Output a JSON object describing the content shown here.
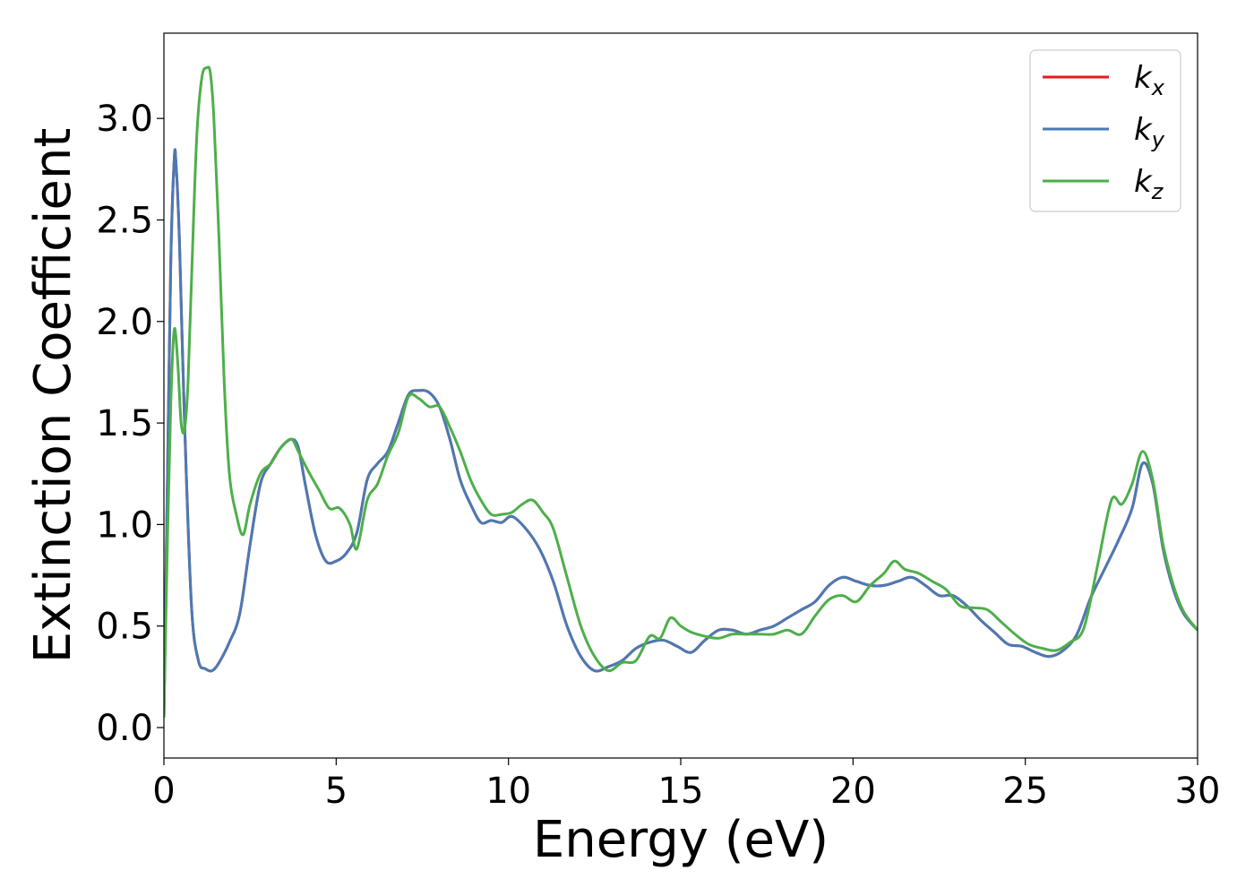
{
  "chart_data": {
    "type": "line",
    "xlabel": "Energy (eV)",
    "ylabel": "Extinction Coefficient",
    "xlim": [
      0,
      30
    ],
    "ylim": [
      -0.15,
      3.42
    ],
    "xticks": [
      0,
      5,
      10,
      15,
      20,
      25,
      30
    ],
    "xtick_labels": [
      "0",
      "5",
      "10",
      "15",
      "20",
      "25",
      "30"
    ],
    "yticks": [
      0.0,
      0.5,
      1.0,
      1.5,
      2.0,
      2.5,
      3.0
    ],
    "ytick_labels": [
      "0.0",
      "0.5",
      "1.0",
      "1.5",
      "2.0",
      "2.5",
      "3.0"
    ],
    "grid": false,
    "legend_position": "top-right",
    "series": [
      {
        "name": "kx",
        "name_main": "k",
        "name_sub": "x",
        "color": "#e41a1c",
        "x": [
          0,
          0.1,
          0.2,
          0.3,
          0.35,
          0.45,
          0.6,
          0.8,
          1.0,
          1.2,
          1.4,
          1.6,
          1.9,
          2.2,
          2.5,
          2.8,
          3.1,
          3.4,
          3.7,
          3.9,
          4.1,
          4.4,
          4.7,
          5.0,
          5.3,
          5.6,
          5.9,
          6.2,
          6.5,
          6.8,
          7.1,
          7.4,
          7.7,
          8.0,
          8.3,
          8.6,
          8.9,
          9.2,
          9.5,
          9.8,
          10.1,
          10.5,
          10.9,
          11.3,
          11.7,
          12.1,
          12.5,
          12.9,
          13.3,
          13.7,
          14.1,
          14.5,
          14.9,
          15.3,
          15.7,
          16.1,
          16.5,
          16.9,
          17.3,
          17.7,
          18.1,
          18.5,
          18.9,
          19.3,
          19.7,
          20.1,
          20.5,
          20.9,
          21.3,
          21.7,
          22.1,
          22.5,
          22.9,
          23.3,
          23.7,
          24.1,
          24.5,
          24.9,
          25.3,
          25.7,
          26.1,
          26.5,
          26.9,
          27.3,
          27.7,
          28.1,
          28.4,
          28.7,
          29.0,
          29.3,
          29.6,
          30.0
        ],
        "values": [
          0.05,
          1.2,
          2.3,
          2.8,
          2.78,
          2.4,
          1.5,
          0.6,
          0.33,
          0.29,
          0.28,
          0.32,
          0.42,
          0.56,
          0.9,
          1.2,
          1.3,
          1.38,
          1.42,
          1.38,
          1.2,
          0.95,
          0.82,
          0.82,
          0.86,
          0.96,
          1.22,
          1.3,
          1.36,
          1.5,
          1.64,
          1.66,
          1.65,
          1.58,
          1.42,
          1.22,
          1.1,
          1.01,
          1.02,
          1.01,
          1.04,
          0.98,
          0.88,
          0.72,
          0.5,
          0.35,
          0.28,
          0.3,
          0.33,
          0.39,
          0.42,
          0.43,
          0.4,
          0.37,
          0.43,
          0.48,
          0.48,
          0.46,
          0.48,
          0.5,
          0.54,
          0.58,
          0.62,
          0.7,
          0.74,
          0.72,
          0.7,
          0.7,
          0.72,
          0.74,
          0.7,
          0.65,
          0.65,
          0.6,
          0.53,
          0.47,
          0.41,
          0.4,
          0.37,
          0.35,
          0.38,
          0.46,
          0.64,
          0.78,
          0.92,
          1.08,
          1.3,
          1.2,
          0.88,
          0.68,
          0.56,
          0.48
        ]
      },
      {
        "name": "ky",
        "name_main": "k",
        "name_sub": "y",
        "color": "#4a7ab4",
        "x": [
          0,
          0.1,
          0.2,
          0.3,
          0.35,
          0.45,
          0.6,
          0.8,
          1.0,
          1.2,
          1.4,
          1.6,
          1.9,
          2.2,
          2.5,
          2.8,
          3.1,
          3.4,
          3.7,
          3.9,
          4.1,
          4.4,
          4.7,
          5.0,
          5.3,
          5.6,
          5.9,
          6.2,
          6.5,
          6.8,
          7.1,
          7.4,
          7.7,
          8.0,
          8.3,
          8.6,
          8.9,
          9.2,
          9.5,
          9.8,
          10.1,
          10.5,
          10.9,
          11.3,
          11.7,
          12.1,
          12.5,
          12.9,
          13.3,
          13.7,
          14.1,
          14.5,
          14.9,
          15.3,
          15.7,
          16.1,
          16.5,
          16.9,
          17.3,
          17.7,
          18.1,
          18.5,
          18.9,
          19.3,
          19.7,
          20.1,
          20.5,
          20.9,
          21.3,
          21.7,
          22.1,
          22.5,
          22.9,
          23.3,
          23.7,
          24.1,
          24.5,
          24.9,
          25.3,
          25.7,
          26.1,
          26.5,
          26.9,
          27.3,
          27.7,
          28.1,
          28.4,
          28.7,
          29.0,
          29.3,
          29.6,
          30.0
        ],
        "values": [
          0.05,
          1.2,
          2.3,
          2.8,
          2.78,
          2.4,
          1.5,
          0.6,
          0.33,
          0.29,
          0.28,
          0.32,
          0.42,
          0.56,
          0.9,
          1.2,
          1.3,
          1.38,
          1.42,
          1.38,
          1.2,
          0.95,
          0.82,
          0.82,
          0.86,
          0.96,
          1.22,
          1.3,
          1.36,
          1.5,
          1.64,
          1.66,
          1.65,
          1.58,
          1.42,
          1.22,
          1.1,
          1.01,
          1.02,
          1.01,
          1.04,
          0.98,
          0.88,
          0.72,
          0.5,
          0.35,
          0.28,
          0.3,
          0.33,
          0.39,
          0.42,
          0.43,
          0.4,
          0.37,
          0.43,
          0.48,
          0.48,
          0.46,
          0.48,
          0.5,
          0.54,
          0.58,
          0.62,
          0.7,
          0.74,
          0.72,
          0.7,
          0.7,
          0.72,
          0.74,
          0.7,
          0.65,
          0.65,
          0.6,
          0.53,
          0.47,
          0.41,
          0.4,
          0.37,
          0.35,
          0.38,
          0.46,
          0.64,
          0.78,
          0.92,
          1.08,
          1.3,
          1.2,
          0.88,
          0.68,
          0.56,
          0.48
        ]
      },
      {
        "name": "kz",
        "name_main": "k",
        "name_sub": "z",
        "color": "#4daf4a",
        "x": [
          0,
          0.1,
          0.2,
          0.3,
          0.4,
          0.5,
          0.6,
          0.7,
          0.8,
          0.95,
          1.1,
          1.25,
          1.35,
          1.45,
          1.6,
          1.75,
          1.9,
          2.1,
          2.3,
          2.5,
          2.8,
          3.1,
          3.4,
          3.7,
          3.9,
          4.2,
          4.5,
          4.8,
          5.1,
          5.4,
          5.6,
          5.9,
          6.2,
          6.5,
          6.8,
          7.1,
          7.4,
          7.7,
          8.0,
          8.3,
          8.6,
          8.9,
          9.2,
          9.5,
          9.8,
          10.1,
          10.4,
          10.7,
          11.0,
          11.3,
          11.7,
          12.1,
          12.5,
          12.9,
          13.3,
          13.7,
          14.1,
          14.4,
          14.7,
          15.0,
          15.3,
          15.7,
          16.1,
          16.5,
          16.9,
          17.3,
          17.7,
          18.1,
          18.5,
          18.9,
          19.3,
          19.7,
          20.1,
          20.5,
          20.9,
          21.2,
          21.5,
          21.9,
          22.3,
          22.7,
          23.1,
          23.5,
          23.9,
          24.3,
          24.7,
          25.1,
          25.5,
          25.9,
          26.3,
          26.7,
          27.1,
          27.5,
          27.8,
          28.1,
          28.4,
          28.7,
          29.0,
          29.3,
          29.6,
          30.0
        ],
        "values": [
          0.05,
          0.9,
          1.6,
          1.96,
          1.8,
          1.5,
          1.47,
          1.7,
          2.2,
          2.9,
          3.2,
          3.25,
          3.22,
          3.0,
          2.4,
          1.7,
          1.25,
          1.05,
          0.95,
          1.1,
          1.25,
          1.3,
          1.38,
          1.42,
          1.36,
          1.26,
          1.17,
          1.08,
          1.08,
          1.0,
          0.88,
          1.12,
          1.2,
          1.34,
          1.45,
          1.63,
          1.62,
          1.58,
          1.58,
          1.48,
          1.36,
          1.22,
          1.12,
          1.05,
          1.05,
          1.06,
          1.1,
          1.12,
          1.06,
          0.98,
          0.74,
          0.5,
          0.35,
          0.28,
          0.32,
          0.33,
          0.45,
          0.44,
          0.54,
          0.5,
          0.47,
          0.45,
          0.44,
          0.46,
          0.46,
          0.46,
          0.46,
          0.48,
          0.46,
          0.55,
          0.63,
          0.65,
          0.62,
          0.7,
          0.76,
          0.82,
          0.78,
          0.76,
          0.72,
          0.68,
          0.6,
          0.59,
          0.58,
          0.52,
          0.46,
          0.41,
          0.39,
          0.38,
          0.42,
          0.49,
          0.8,
          1.12,
          1.1,
          1.2,
          1.36,
          1.22,
          0.9,
          0.7,
          0.57,
          0.48
        ]
      }
    ]
  }
}
